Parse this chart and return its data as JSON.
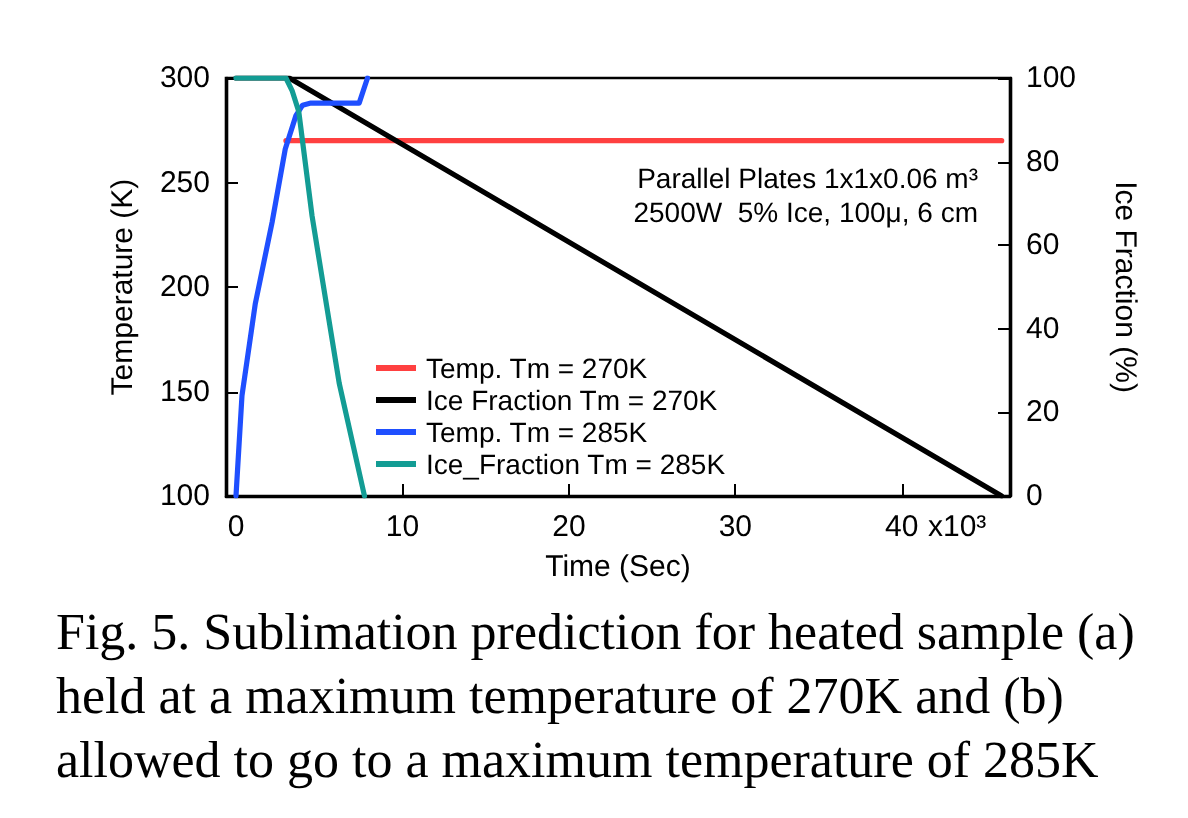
{
  "chart_data": {
    "type": "line",
    "xlabel": "Time (Sec)",
    "ylabel": "Temperature (K)",
    "y2label": "Ice Fraction (%)",
    "xlim": [
      -0.6,
      46.5
    ],
    "xticks": [
      0,
      10,
      20,
      30,
      40
    ],
    "ylim": [
      100,
      300
    ],
    "yticks": [
      100,
      150,
      200,
      250,
      300
    ],
    "y2lim": [
      0,
      100
    ],
    "y2ticks": [
      0,
      20,
      40,
      60,
      80,
      100
    ],
    "grid": false,
    "legend": "bottom",
    "marker": "none",
    "line_style": "solid",
    "annotations": [
      "Parallel Plates 1x1x0.06 m³",
      "2500W  5% Ice, 100μ, 6 cm",
      "Fig. 5. Sublimation prediction for heated sample (a) held at a maximum temperature of 270K and (b) allowed to go to a maximum temperature of 285K",
      "x10³"
    ],
    "series": [
      {
        "name": "Temp. Tm = 270K",
        "color": "#ff4040",
        "x": [
          3.0,
          46.0
        ],
        "values": [
          270,
          270
        ]
      },
      {
        "name": "Ice Fraction Tm = 270K",
        "color": "#000000",
        "axis": "y2",
        "x": [
          0,
          3.2,
          46.0
        ],
        "values": [
          100,
          100,
          0
        ]
      },
      {
        "name": "Temp. Tm = 285K",
        "color": "#1f4fff",
        "x": [
          0,
          0.36,
          1.16,
          2.17,
          2.96,
          3.6,
          4.0,
          4.5,
          7.4,
          7.9
        ],
        "values": [
          100,
          148,
          192,
          231,
          266,
          282,
          287,
          288,
          288,
          300
        ]
      },
      {
        "name": "Ice_Fraction Tm = 285K",
        "color": "#139c94",
        "axis": "y2",
        "x": [
          0,
          3.0,
          3.37,
          3.77,
          4.57,
          6.2,
          7.72
        ],
        "values": [
          100,
          100,
          97,
          92,
          67,
          27,
          0
        ]
      }
    ]
  }
}
